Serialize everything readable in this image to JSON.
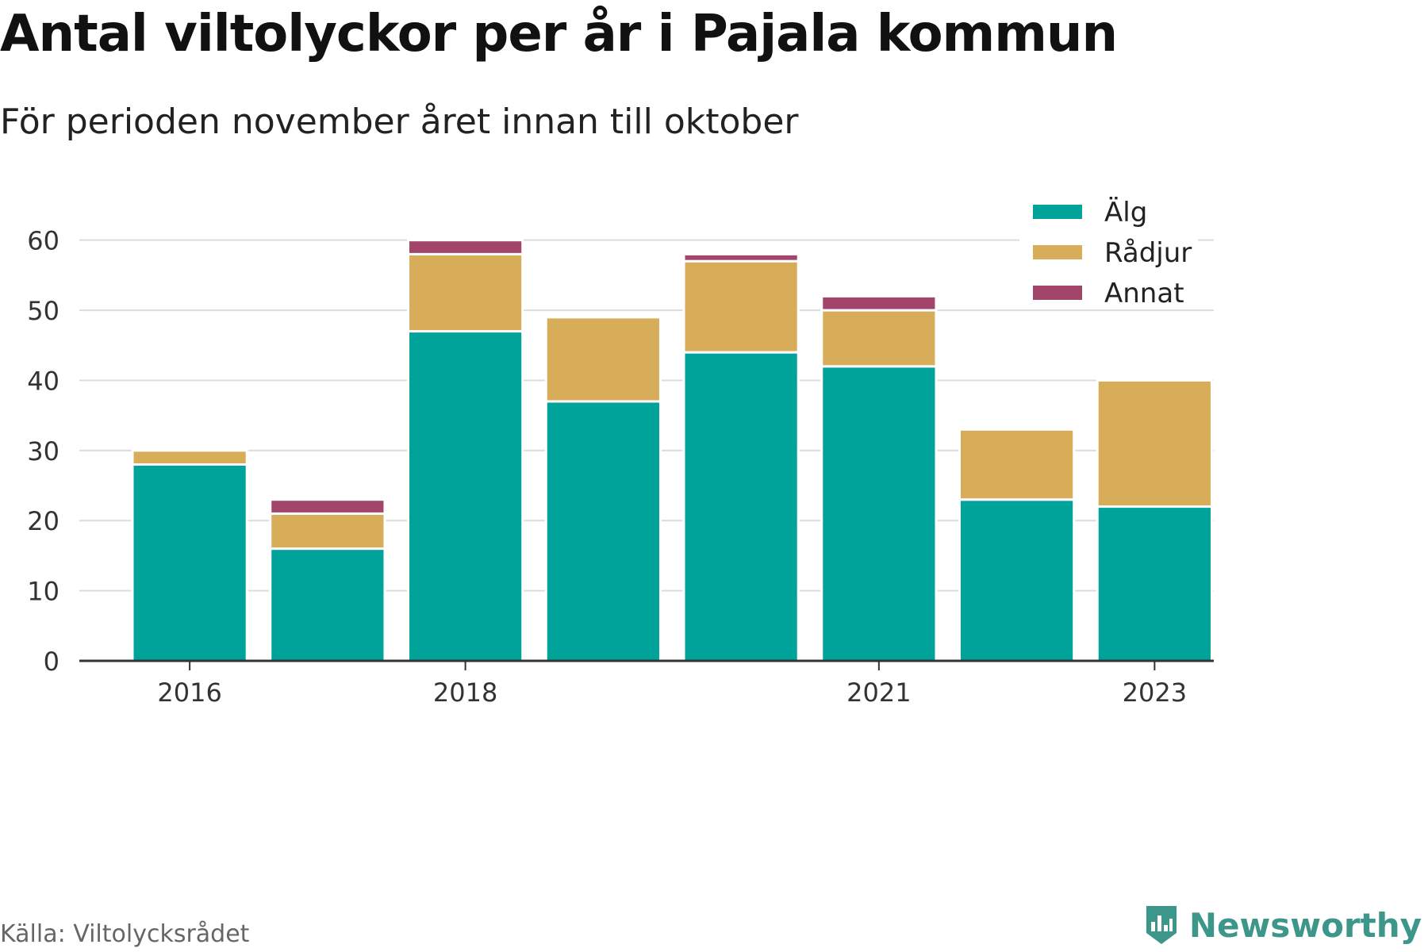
{
  "header": {
    "title": "Antal viltolyckor per år i Pajala kommun",
    "subtitle": "För perioden november året innan till oktober"
  },
  "footer": {
    "source": "Källa: Viltolycksrådet",
    "brand": "Newsworthy",
    "brand_icon": "bar-chart-shield-icon",
    "brand_color": "#3d968a"
  },
  "chart_data": {
    "type": "bar",
    "stacked": true,
    "categories": [
      2016,
      2017,
      2018,
      2019,
      2020,
      2021,
      2022,
      2023
    ],
    "x_tick_labels": [
      "2016",
      "2018",
      "2021",
      "2023"
    ],
    "y_ticks": [
      0,
      10,
      20,
      30,
      40,
      50,
      60
    ],
    "ylim": [
      0,
      62
    ],
    "grid": true,
    "legend_position": "top-right",
    "series": [
      {
        "name": "Älg",
        "color": "#00a39a",
        "values": [
          28,
          16,
          47,
          37,
          44,
          42,
          23,
          22
        ]
      },
      {
        "name": "Rådjur",
        "color": "#d8ad5a",
        "values": [
          2,
          5,
          11,
          12,
          13,
          8,
          10,
          18
        ]
      },
      {
        "name": "Annat",
        "color": "#a3446b",
        "values": [
          0,
          2,
          2,
          0,
          1,
          2,
          0,
          0
        ]
      }
    ]
  }
}
